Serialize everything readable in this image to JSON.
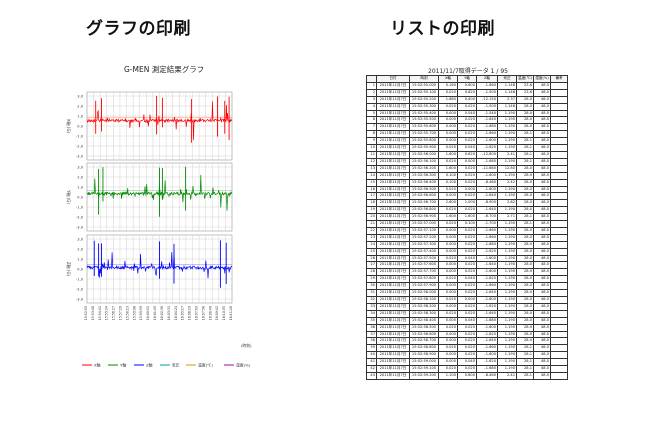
{
  "headings": {
    "graph": "グラフの印刷",
    "list": "リストの印刷"
  },
  "chart_title": "G-MEN 測定結果グラフ",
  "list_title": "2011/11/7取得データ 1 / 95",
  "colors": {
    "panel1": "#ff0000",
    "panel2": "#008800",
    "panel3": "#0000ff",
    "temp": "#c8a000",
    "humidity": "#b000b0",
    "pressure": "#00a0a0",
    "grid": "#c8c8c8"
  },
  "chart_data": {
    "type": "line",
    "title": "G-MEN 測定結果グラフ",
    "xlabel": "(時刻)",
    "panels": [
      {
        "ylabel": "X軸 (G)",
        "series": "X軸",
        "color": "#ff0000",
        "yticks": [
          "3.0",
          "2.0",
          "1.0",
          "0.0",
          "-1.0",
          "-2.0",
          "-3.0"
        ]
      },
      {
        "ylabel": "Y軸 (G)",
        "series": "Y軸",
        "color": "#008800",
        "yticks": [
          "3.0",
          "2.0",
          "1.0",
          "0.0",
          "-1.0",
          "-2.0",
          "-3.0"
        ]
      },
      {
        "ylabel": "Z軸 (G)",
        "series": "Z軸",
        "color": "#0000ff",
        "yticks": [
          "3.0",
          "2.0",
          "1.0",
          "0.0",
          "-1.0",
          "-2.0",
          "-3.0"
        ]
      }
    ],
    "xticks": [
      "15:52:55",
      "15:53:48",
      "15:54:41",
      "15:55:34",
      "15:56:27",
      "15:57:20",
      "15:58:13",
      "15:59:06",
      "15:59:59",
      "16:00:52",
      "16:01:45",
      "16:02:38",
      "16:03:31",
      "16:04:24",
      "16:05:17",
      "16:06:10",
      "16:07:03",
      "16:07:56",
      "16:08:49",
      "16:09:42",
      "16:10:35",
      "16:11:28"
    ],
    "legend": [
      {
        "label": "X軸",
        "color": "#ff0000"
      },
      {
        "label": "Y軸",
        "color": "#008800"
      },
      {
        "label": "Z軸",
        "color": "#0000ff"
      },
      {
        "label": "気圧",
        "color": "#00a0a0"
      },
      {
        "label": "温度(℃)",
        "color": "#c8a000"
      },
      {
        "label": "湿度(%)",
        "color": "#b000b0"
      }
    ]
  },
  "table": {
    "headers": [
      "",
      "日付",
      "時刻",
      "X軸",
      "Y軸",
      "Z軸",
      "気圧",
      "温度(℃)",
      "湿度(%)",
      "備考"
    ],
    "rows": [
      [
        "1",
        "2011年11月7日",
        "15:52:55.000",
        "0.160",
        "0.600",
        "-1.660",
        "1.148",
        "23.6",
        "48.0"
      ],
      [
        "2",
        "2011年11月7日",
        "15:52:55.100",
        "0.020",
        "0.620",
        "-1.500",
        "1.148",
        "23.6",
        "48.0"
      ],
      [
        "3",
        "2011年11月7日",
        "15:52:55.200",
        "1.680",
        "0.400",
        "-12.150",
        "2.37",
        "28.0",
        "48.0"
      ],
      [
        "4",
        "2011年11月7日",
        "15:52:55.300",
        "0.020",
        "0.020",
        "-1.500",
        "1.148",
        "28.0",
        "48.0"
      ],
      [
        "5",
        "2011年11月7日",
        "15:52:55.400",
        "0.000",
        "0.040",
        "-1.540",
        "1.190",
        "28.0",
        "48.0"
      ],
      [
        "6",
        "2011年11月7日",
        "15:52:55.500",
        "0.000",
        "0.020",
        "-1.640",
        "1.190",
        "28.0",
        "48.0"
      ],
      [
        "7",
        "2011年11月7日",
        "15:52:55.600",
        "0.000",
        "0.020",
        "-1.680",
        "1.190",
        "28.0",
        "48.0"
      ],
      [
        "8",
        "2011年11月7日",
        "15:52:55.700",
        "0.000",
        "0.020",
        "-1.660",
        "1.190",
        "28.1",
        "48.0"
      ],
      [
        "9",
        "2011年11月7日",
        "15:52:55.800",
        "0.000",
        "0.020",
        "-1.600",
        "1.190",
        "28.1",
        "48.0"
      ],
      [
        "10",
        "2011年11月7日",
        "15:52:55.900",
        "0.020",
        "0.040",
        "-1.620",
        "1.190",
        "28.1",
        "48.0"
      ],
      [
        "11",
        "2011年11月7日",
        "15:52:56.000",
        "1.600",
        "0.620",
        "-12.800",
        "2.41",
        "28.1",
        "48.0"
      ],
      [
        "12",
        "2011年11月7日",
        "15:52:56.100",
        "0.020",
        "0.000",
        "-1.680",
        "1.190",
        "28.1",
        "48.0"
      ],
      [
        "13",
        "2011年11月7日",
        "15:52:56.200",
        "1.600",
        "0.020",
        "-11.660",
        "12.80",
        "28.0",
        "48.0"
      ],
      [
        "14",
        "2011年11月7日",
        "15:52:56.300",
        "0.100",
        "0.020",
        "-1.600",
        "1.190",
        "28.0",
        "48.0"
      ],
      [
        "15",
        "2011年11月7日",
        "15:52:56.400",
        "0.100",
        "0.020",
        "-8.460",
        "2.42",
        "28.0",
        "48.0"
      ],
      [
        "16",
        "2011年11月7日",
        "15:52:56.500",
        "0.020",
        "0.000",
        "-1.600",
        "1.190",
        "28.0",
        "48.0"
      ],
      [
        "17",
        "2011年11月7日",
        "15:52:56.600",
        "0.000",
        "0.020",
        "-1.640",
        "1.190",
        "28.0",
        "48.0"
      ],
      [
        "18",
        "2011年11月7日",
        "15:52:56.700",
        "2.600",
        "1.000",
        "-8.900",
        "2.62",
        "28.0",
        "48.0"
      ],
      [
        "19",
        "2011年11月7日",
        "15:52:56.800",
        "0.020",
        "0.020",
        "-1.640",
        "1.190",
        "28.0",
        "48.0"
      ],
      [
        "20",
        "2011年11月7日",
        "15:52:56.900",
        "1.600",
        "1.600",
        "-6.700",
        "2.71",
        "28.1",
        "48.0"
      ],
      [
        "21",
        "2011年11月7日",
        "15:52:57.000",
        "0.020",
        "0.100",
        "-1.700",
        "1.190",
        "28.1",
        "48.0"
      ],
      [
        "22",
        "2011年11月7日",
        "15:52:57.100",
        "0.000",
        "0.020",
        "-1.660",
        "1.190",
        "28.0",
        "48.0"
      ],
      [
        "23",
        "2011年11月7日",
        "15:52:57.200",
        "0.000",
        "0.020",
        "-1.660",
        "1.190",
        "28.0",
        "48.0"
      ],
      [
        "24",
        "2011年11月7日",
        "15:52:57.300",
        "0.000",
        "0.020",
        "-1.680",
        "1.190",
        "28.0",
        "48.0"
      ],
      [
        "25",
        "2011年11月7日",
        "15:52:57.400",
        "0.000",
        "0.020",
        "-1.620",
        "1.190",
        "28.0",
        "48.0"
      ],
      [
        "26",
        "2011年11月7日",
        "15:52:57.500",
        "0.020",
        "0.040",
        "-1.600",
        "1.190",
        "28.0",
        "48.0"
      ],
      [
        "27",
        "2011年11月7日",
        "15:52:57.600",
        "0.000",
        "0.020",
        "-1.640",
        "1.190",
        "28.0",
        "48.0"
      ],
      [
        "28",
        "2011年11月7日",
        "15:52:57.700",
        "0.000",
        "0.020",
        "-1.600",
        "1.190",
        "28.0",
        "48.0"
      ],
      [
        "29",
        "2011年11月7日",
        "15:52:57.800",
        "0.020",
        "0.040",
        "-1.620",
        "1.190",
        "28.0",
        "48.0"
      ],
      [
        "30",
        "2011年11月7日",
        "15:52:57.900",
        "0.000",
        "0.020",
        "-1.660",
        "1.190",
        "28.0",
        "48.0"
      ],
      [
        "31",
        "2011年11月7日",
        "15:52:58.000",
        "0.000",
        "0.020",
        "-1.640",
        "1.190",
        "28.0",
        "48.0"
      ],
      [
        "32",
        "2011年11月7日",
        "15:52:58.100",
        "0.020",
        "0.000",
        "-1.600",
        "1.190",
        "28.0",
        "48.0"
      ],
      [
        "33",
        "2011年11月7日",
        "15:52:58.200",
        "0.000",
        "0.020",
        "-1.620",
        "1.190",
        "28.0",
        "48.0"
      ],
      [
        "34",
        "2011年11月7日",
        "15:52:58.300",
        "0.020",
        "0.020",
        "-1.640",
        "1.190",
        "28.0",
        "48.0"
      ],
      [
        "35",
        "2011年11月7日",
        "15:52:58.400",
        "0.000",
        "0.040",
        "-1.680",
        "1.190",
        "28.0",
        "48.0"
      ],
      [
        "36",
        "2011年11月7日",
        "15:52:58.500",
        "0.020",
        "0.020",
        "-1.600",
        "1.190",
        "28.0",
        "48.0"
      ],
      [
        "37",
        "2011年11月7日",
        "15:52:58.600",
        "0.000",
        "0.020",
        "-1.620",
        "1.190",
        "28.0",
        "48.0"
      ],
      [
        "38",
        "2011年11月7日",
        "15:52:58.700",
        "0.000",
        "0.020",
        "-1.640",
        "1.190",
        "28.0",
        "48.0"
      ],
      [
        "39",
        "2011年11月7日",
        "15:52:58.800",
        "0.020",
        "0.020",
        "-1.660",
        "1.190",
        "28.1",
        "48.0"
      ],
      [
        "40",
        "2011年11月7日",
        "15:52:58.900",
        "0.000",
        "0.020",
        "-1.600",
        "1.190",
        "28.1",
        "48.0"
      ],
      [
        "41",
        "2011年11月7日",
        "15:52:59.000",
        "0.000",
        "0.040",
        "-1.620",
        "1.190",
        "28.1",
        "48.0"
      ],
      [
        "42",
        "2011年11月7日",
        "15:52:59.100",
        "0.020",
        "0.020",
        "-1.680",
        "1.190",
        "28.1",
        "48.0"
      ],
      [
        "43",
        "2011年11月7日",
        "15:52:59.200",
        "1.100",
        "0.600",
        "-8.460",
        "2.41",
        "28.1",
        "48.0"
      ]
    ]
  }
}
